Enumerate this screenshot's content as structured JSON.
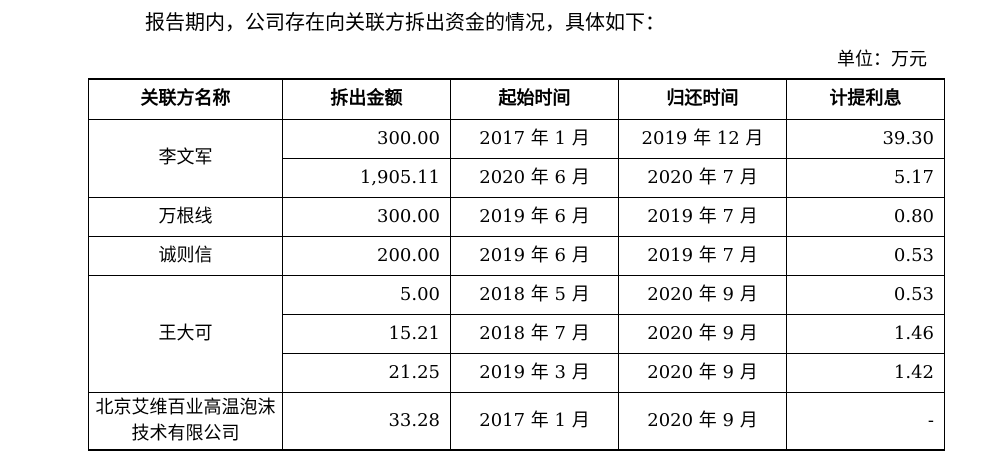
{
  "intro_text": "报告期内，公司存在向关联方拆出资金的情况，具体如下：",
  "unit_text": "单位：万元",
  "table": {
    "headers": [
      "关联方名称",
      "拆出金额",
      "起始时间",
      "归还时间",
      "计提利息"
    ],
    "groups": [
      {
        "name": "李文军",
        "rows": [
          {
            "amount": "300.00",
            "start": "2017 年 1 月",
            "end": "2019 年 12 月",
            "interest": "39.30"
          },
          {
            "amount": "1,905.11",
            "start": "2020 年 6 月",
            "end": "2020 年 7 月",
            "interest": "5.17"
          }
        ]
      },
      {
        "name": "万根线",
        "rows": [
          {
            "amount": "300.00",
            "start": "2019 年 6 月",
            "end": "2019 年 7 月",
            "interest": "0.80"
          }
        ]
      },
      {
        "name": "诚则信",
        "rows": [
          {
            "amount": "200.00",
            "start": "2019 年 6 月",
            "end": "2019 年 7 月",
            "interest": "0.53"
          }
        ]
      },
      {
        "name": "王大可",
        "rows": [
          {
            "amount": "5.00",
            "start": "2018 年 5 月",
            "end": "2020 年 9 月",
            "interest": "0.53"
          },
          {
            "amount": "15.21",
            "start": "2018 年 7 月",
            "end": "2020 年 9 月",
            "interest": "1.46"
          },
          {
            "amount": "21.25",
            "start": "2019 年 3 月",
            "end": "2020 年 9 月",
            "interest": "1.42"
          }
        ]
      },
      {
        "name": "北京艾维百业高温泡沫技术有限公司",
        "rows": [
          {
            "amount": "33.28",
            "start": "2017 年 1 月",
            "end": "2020 年 9 月",
            "interest": "-"
          }
        ]
      }
    ]
  }
}
